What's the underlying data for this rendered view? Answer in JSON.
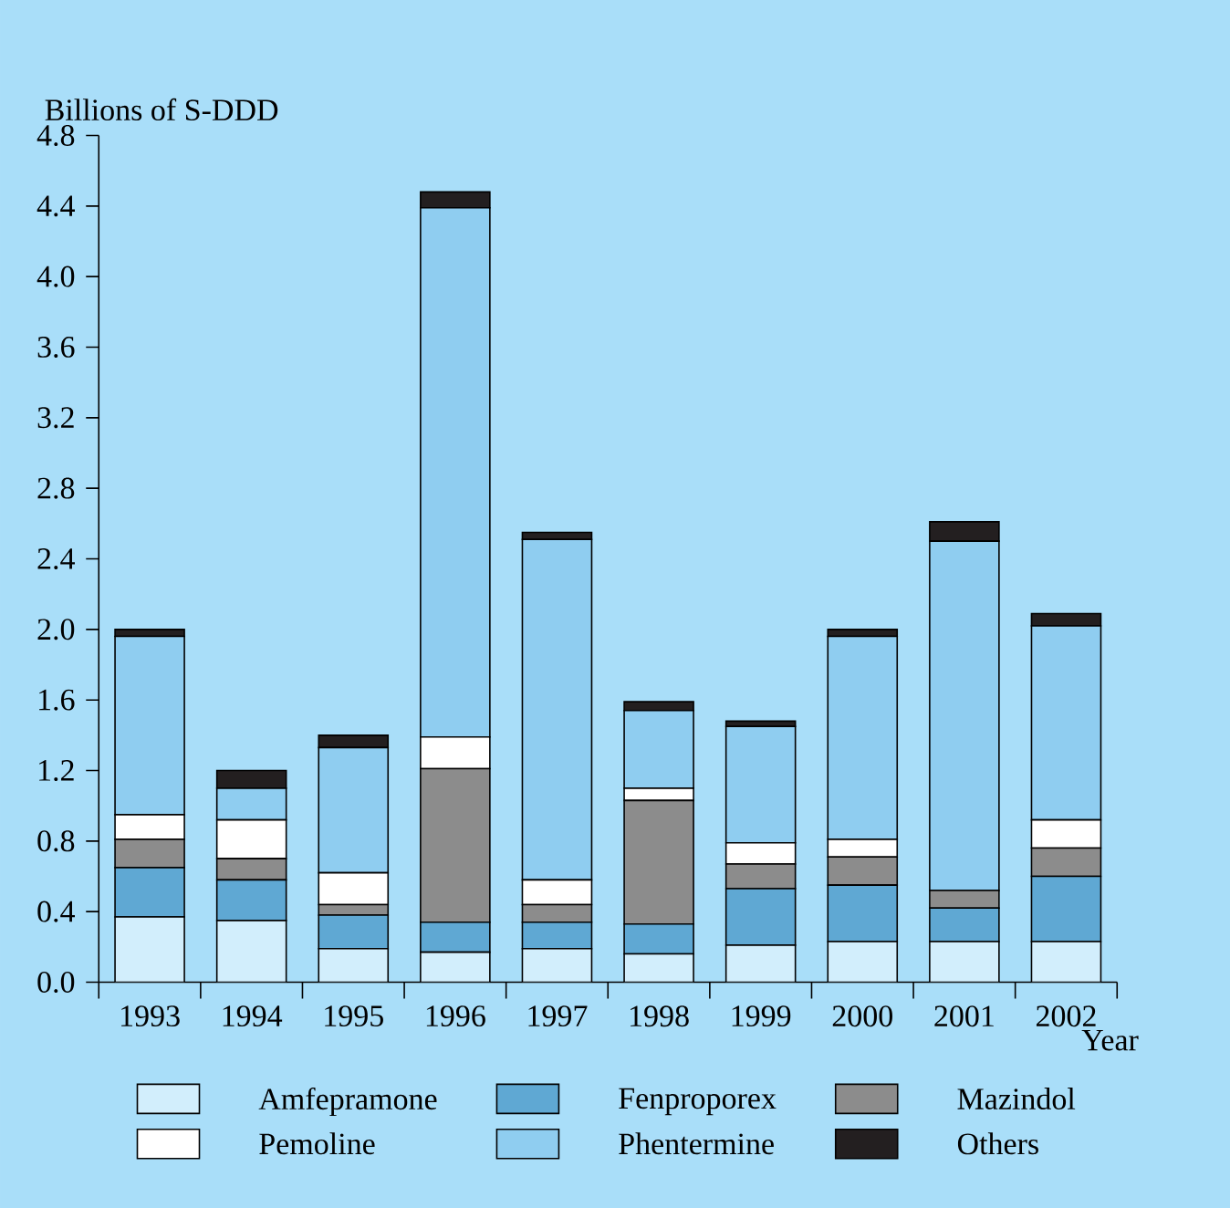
{
  "chart_data": {
    "type": "bar",
    "stacked": true,
    "ylabel": "Billions of S-DDD",
    "xlabel": "Year",
    "categories": [
      "1993",
      "1994",
      "1995",
      "1996",
      "1997",
      "1998",
      "1999",
      "2000",
      "2001",
      "2002"
    ],
    "series": [
      {
        "name": "Amfepramone",
        "color": "#d2eefc",
        "values": [
          0.37,
          0.35,
          0.19,
          0.17,
          0.19,
          0.16,
          0.21,
          0.23,
          0.23,
          0.23
        ]
      },
      {
        "name": "Fenproporex",
        "color": "#5fa8d3",
        "values": [
          0.28,
          0.23,
          0.19,
          0.17,
          0.15,
          0.17,
          0.32,
          0.32,
          0.19,
          0.37
        ]
      },
      {
        "name": "Mazindol",
        "color": "#8c8c8c",
        "values": [
          0.16,
          0.12,
          0.06,
          0.87,
          0.1,
          0.7,
          0.14,
          0.16,
          0.1,
          0.16
        ]
      },
      {
        "name": "Pemoline",
        "color": "#ffffff",
        "values": [
          0.14,
          0.22,
          0.18,
          0.18,
          0.14,
          0.07,
          0.12,
          0.1,
          0,
          0.16
        ]
      },
      {
        "name": "Phentermine",
        "color": "#8fcdf0",
        "values": [
          1.01,
          0.18,
          0.71,
          3.0,
          1.93,
          0.44,
          0.66,
          1.15,
          1.98,
          1.1
        ]
      },
      {
        "name": "Others",
        "color": "#231f20",
        "values": [
          0.04,
          0.1,
          0.07,
          0.09,
          0.04,
          0.05,
          0.03,
          0.04,
          0.11,
          0.07
        ]
      }
    ],
    "ylim": [
      0,
      4.8
    ],
    "yticks": [
      {
        "value": 0,
        "label": "0.0"
      },
      0.4,
      0.8,
      1.2,
      1.6,
      {
        "value": 2,
        "label": "2.0"
      },
      2.4,
      2.8,
      3.2,
      3.6,
      {
        "value": 4,
        "label": "4.0"
      },
      4.4,
      4.8
    ],
    "legend": "bottom",
    "grid": false
  }
}
